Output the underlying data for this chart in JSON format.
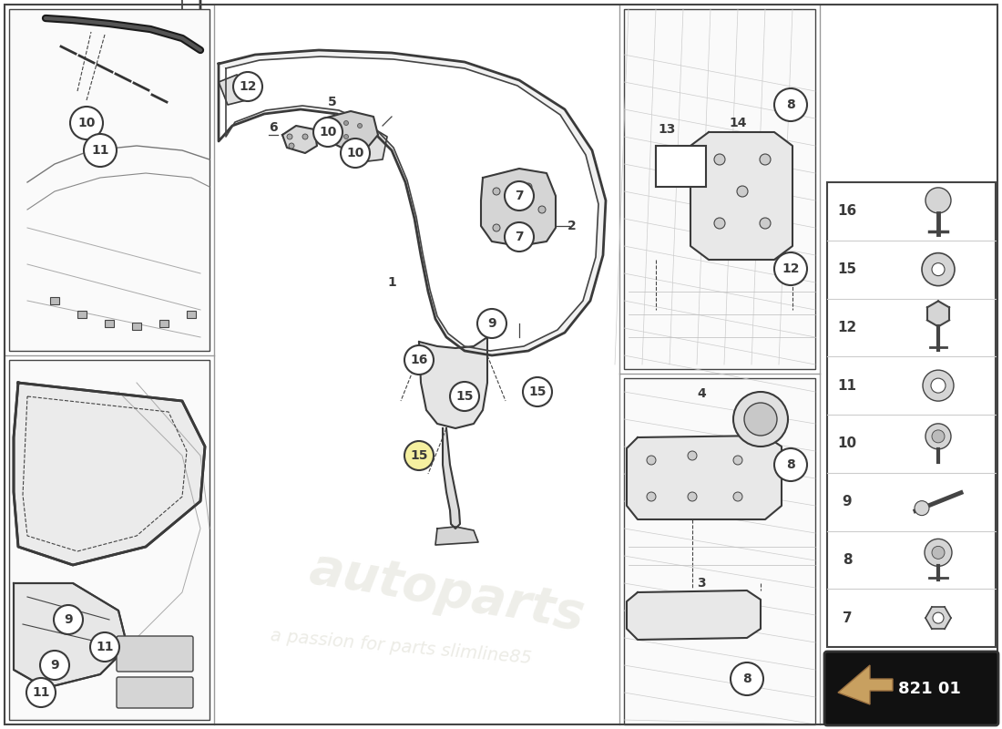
{
  "bg_color": "#ffffff",
  "line_color": "#3a3a3a",
  "light_gray": "#cccccc",
  "mid_gray": "#888888",
  "dark_gray": "#444444",
  "part_code": "821 01",
  "part_code_bg": "#1a1a1a",
  "highlighted_fill": "#f5f0a0",
  "watermark_color": "#d0cfc0",
  "legend_items": [
    16,
    15,
    12,
    11,
    10,
    9,
    8,
    7
  ],
  "border_color": "#555555"
}
